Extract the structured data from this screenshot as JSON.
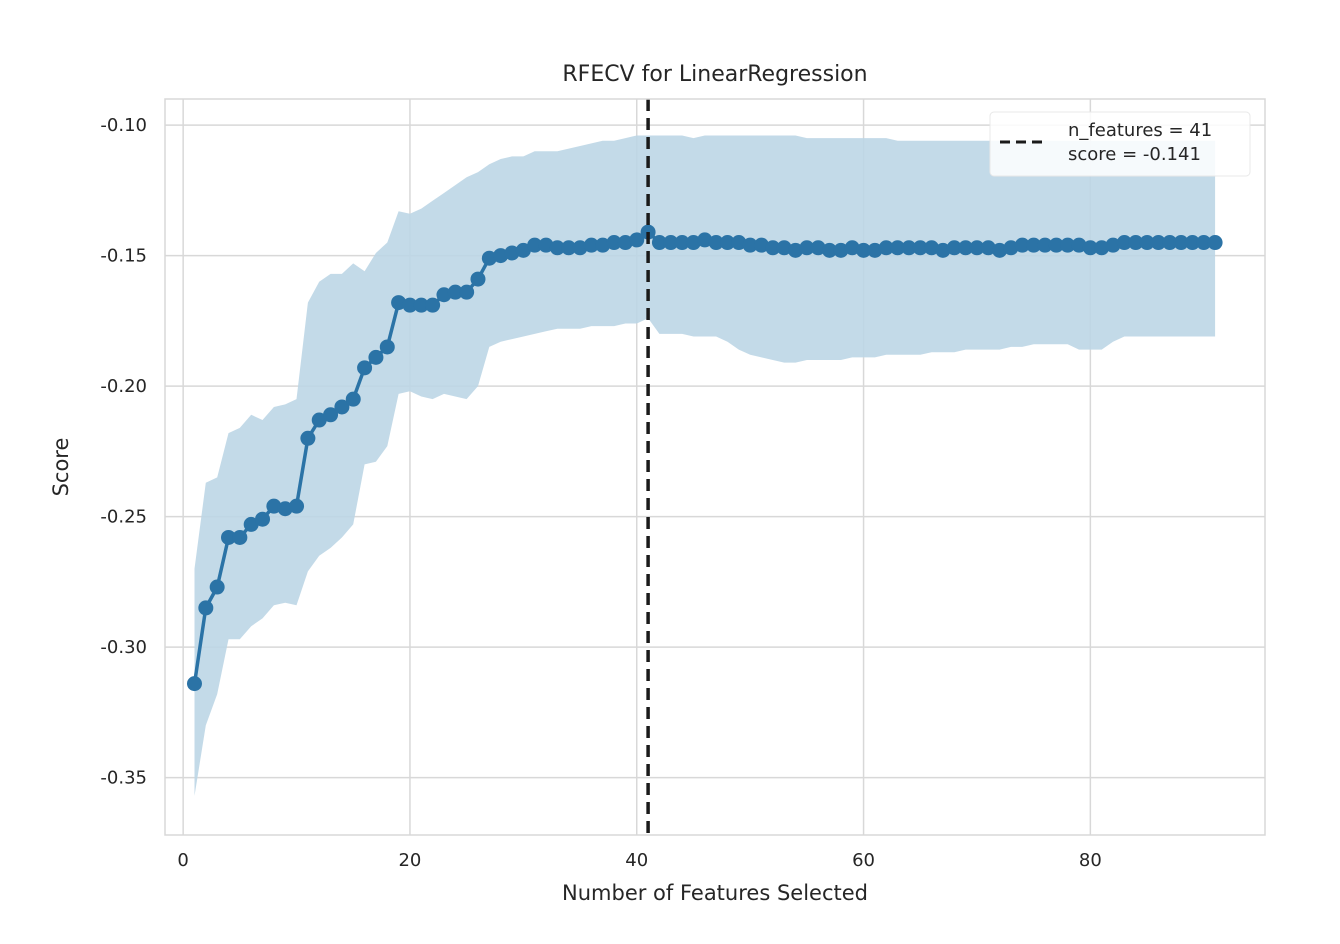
{
  "chart_data": {
    "type": "line",
    "title": "RFECV for LinearRegression",
    "xlabel": "Number of Features Selected",
    "ylabel": "Score",
    "xlim": [
      -1.6,
      95.4
    ],
    "ylim": [
      -0.372,
      -0.09
    ],
    "xticks": [
      0,
      20,
      40,
      60,
      80
    ],
    "yticks": [
      -0.1,
      -0.15,
      -0.2,
      -0.25,
      -0.3,
      -0.35
    ],
    "xtick_labels": [
      "0",
      "20",
      "40",
      "60",
      "80"
    ],
    "ytick_labels": [
      "-0.10",
      "-0.15",
      "-0.20",
      "-0.25",
      "-0.30",
      "-0.35"
    ],
    "grid": true,
    "legend_position": "top-right",
    "colors": {
      "line": "#2b73a6",
      "band": "#bcd6e6",
      "vline": "#1a1a1a",
      "grid": "#d8d8d8"
    },
    "x": [
      1,
      2,
      3,
      4,
      5,
      6,
      7,
      8,
      9,
      10,
      11,
      12,
      13,
      14,
      15,
      16,
      17,
      18,
      19,
      20,
      21,
      22,
      23,
      24,
      25,
      26,
      27,
      28,
      29,
      30,
      31,
      32,
      33,
      34,
      35,
      36,
      37,
      38,
      39,
      40,
      41,
      42,
      43,
      44,
      45,
      46,
      47,
      48,
      49,
      50,
      51,
      52,
      53,
      54,
      55,
      56,
      57,
      58,
      59,
      60,
      61,
      62,
      63,
      64,
      65,
      66,
      67,
      68,
      69,
      70,
      71,
      72,
      73,
      74,
      75,
      76,
      77,
      78,
      79,
      80,
      81,
      82,
      83,
      84,
      85,
      86,
      87,
      88,
      89,
      90,
      91
    ],
    "y": [
      -0.314,
      -0.285,
      -0.277,
      -0.258,
      -0.258,
      -0.253,
      -0.251,
      -0.246,
      -0.247,
      -0.246,
      -0.22,
      -0.213,
      -0.211,
      -0.208,
      -0.205,
      -0.193,
      -0.189,
      -0.185,
      -0.168,
      -0.169,
      -0.169,
      -0.169,
      -0.165,
      -0.164,
      -0.164,
      -0.159,
      -0.151,
      -0.15,
      -0.149,
      -0.148,
      -0.146,
      -0.146,
      -0.147,
      -0.147,
      -0.147,
      -0.146,
      -0.146,
      -0.145,
      -0.145,
      -0.144,
      -0.141,
      -0.145,
      -0.145,
      -0.145,
      -0.145,
      -0.144,
      -0.145,
      -0.145,
      -0.145,
      -0.146,
      -0.146,
      -0.147,
      -0.147,
      -0.148,
      -0.147,
      -0.147,
      -0.148,
      -0.148,
      -0.147,
      -0.148,
      -0.148,
      -0.147,
      -0.147,
      -0.147,
      -0.147,
      -0.147,
      -0.148,
      -0.147,
      -0.147,
      -0.147,
      -0.147,
      -0.148,
      -0.147,
      -0.146,
      -0.146,
      -0.146,
      -0.146,
      -0.146,
      -0.146,
      -0.147,
      -0.147,
      -0.146,
      -0.145,
      -0.145,
      -0.145,
      -0.145,
      -0.145,
      -0.145,
      -0.145,
      -0.145,
      -0.145
    ],
    "upper": [
      -0.27,
      -0.237,
      -0.235,
      -0.218,
      -0.216,
      -0.211,
      -0.213,
      -0.208,
      -0.207,
      -0.205,
      -0.168,
      -0.16,
      -0.157,
      -0.157,
      -0.153,
      -0.156,
      -0.149,
      -0.145,
      -0.133,
      -0.134,
      -0.132,
      -0.129,
      -0.126,
      -0.123,
      -0.12,
      -0.118,
      -0.115,
      -0.113,
      -0.112,
      -0.112,
      -0.11,
      -0.11,
      -0.11,
      -0.109,
      -0.108,
      -0.107,
      -0.106,
      -0.106,
      -0.105,
      -0.104,
      -0.104,
      -0.104,
      -0.104,
      -0.104,
      -0.105,
      -0.104,
      -0.104,
      -0.104,
      -0.104,
      -0.104,
      -0.104,
      -0.104,
      -0.104,
      -0.104,
      -0.105,
      -0.105,
      -0.105,
      -0.105,
      -0.105,
      -0.105,
      -0.105,
      -0.105,
      -0.106,
      -0.106,
      -0.106,
      -0.106,
      -0.106,
      -0.106,
      -0.106,
      -0.106,
      -0.106,
      -0.106,
      -0.106,
      -0.106,
      -0.106,
      -0.106,
      -0.106,
      -0.106,
      -0.106,
      -0.106,
      -0.106,
      -0.106,
      -0.106,
      -0.106,
      -0.106,
      -0.106,
      -0.106,
      -0.106,
      -0.106,
      -0.106,
      -0.106
    ],
    "lower": [
      -0.357,
      -0.33,
      -0.318,
      -0.297,
      -0.297,
      -0.292,
      -0.289,
      -0.284,
      -0.283,
      -0.284,
      -0.271,
      -0.265,
      -0.262,
      -0.258,
      -0.253,
      -0.23,
      -0.229,
      -0.223,
      -0.203,
      -0.202,
      -0.204,
      -0.205,
      -0.203,
      -0.204,
      -0.205,
      -0.2,
      -0.185,
      -0.183,
      -0.182,
      -0.181,
      -0.18,
      -0.179,
      -0.178,
      -0.178,
      -0.178,
      -0.177,
      -0.177,
      -0.177,
      -0.176,
      -0.176,
      -0.174,
      -0.18,
      -0.18,
      -0.18,
      -0.181,
      -0.181,
      -0.181,
      -0.183,
      -0.186,
      -0.188,
      -0.189,
      -0.19,
      -0.191,
      -0.191,
      -0.19,
      -0.19,
      -0.19,
      -0.19,
      -0.189,
      -0.189,
      -0.189,
      -0.188,
      -0.188,
      -0.188,
      -0.188,
      -0.187,
      -0.187,
      -0.187,
      -0.186,
      -0.186,
      -0.186,
      -0.186,
      -0.185,
      -0.185,
      -0.184,
      -0.184,
      -0.184,
      -0.184,
      -0.186,
      -0.186,
      -0.186,
      -0.183,
      -0.181,
      -0.181,
      -0.181,
      -0.181,
      -0.181,
      -0.181,
      -0.181,
      -0.181,
      -0.181
    ],
    "vline_x": 41,
    "legend": {
      "line1": "n_features = 41",
      "line2": "score = -0.141"
    }
  }
}
